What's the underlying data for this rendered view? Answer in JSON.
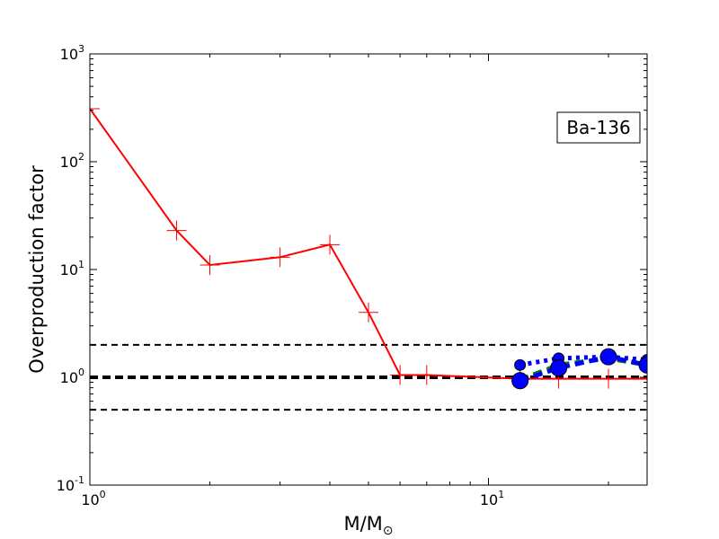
{
  "chart_data": {
    "type": "line",
    "x_scale": "log",
    "y_scale": "log",
    "xlim": [
      1,
      25
    ],
    "ylim": [
      0.1,
      1000
    ],
    "xlabel": "M/M",
    "xlabel_sub": "⊙",
    "ylabel": "Overproduction factor",
    "annotation": "Ba-136",
    "legend_position": "top-right",
    "grid": false,
    "x_ticks": [
      {
        "base": "10",
        "exp": "0",
        "value": 1
      },
      {
        "base": "10",
        "exp": "1",
        "value": 10
      }
    ],
    "y_ticks": [
      {
        "base": "10",
        "exp": "-1",
        "value": 0.1
      },
      {
        "base": "10",
        "exp": "0",
        "value": 1
      },
      {
        "base": "10",
        "exp": "1",
        "value": 10
      },
      {
        "base": "10",
        "exp": "2",
        "value": 100
      },
      {
        "base": "10",
        "exp": "3",
        "value": 1000
      }
    ],
    "reference_lines": [
      {
        "y": 2.0,
        "color": "#000000",
        "style": "dashed",
        "width": 2
      },
      {
        "y": 1.0,
        "color": "#000000",
        "style": "dashed",
        "width": 4
      },
      {
        "y": 0.5,
        "color": "#000000",
        "style": "dashed",
        "width": 2
      }
    ],
    "series": [
      {
        "color": "#ff0000",
        "line_style": "solid",
        "marker": "plus",
        "x": [
          1.0,
          1.65,
          2.0,
          3.0,
          4.0,
          5.0,
          6.0,
          7.0,
          12.0,
          15.0,
          20.0,
          25.0
        ],
        "y": [
          310,
          23,
          11,
          13,
          17,
          4.0,
          1.05,
          1.05,
          0.97,
          0.97,
          0.97,
          0.97
        ]
      },
      {
        "color": "#008000",
        "line_style": "dashed",
        "marker": "none",
        "x": [
          12.0,
          15.0,
          20.0,
          25.0
        ],
        "y": [
          0.95,
          1.3,
          1.5,
          1.3
        ]
      },
      {
        "color": "#0000ff",
        "line_style": "dotted",
        "marker": "circle",
        "x": [
          12.0,
          15.0,
          20.0,
          25.0
        ],
        "y": [
          1.3,
          1.5,
          1.55,
          1.45
        ]
      },
      {
        "color": "#0000ff",
        "line_style": "dashed",
        "marker": "circle",
        "x": [
          12.0,
          15.0,
          20.0,
          25.0
        ],
        "y": [
          0.93,
          1.22,
          1.55,
          1.3
        ]
      }
    ]
  }
}
